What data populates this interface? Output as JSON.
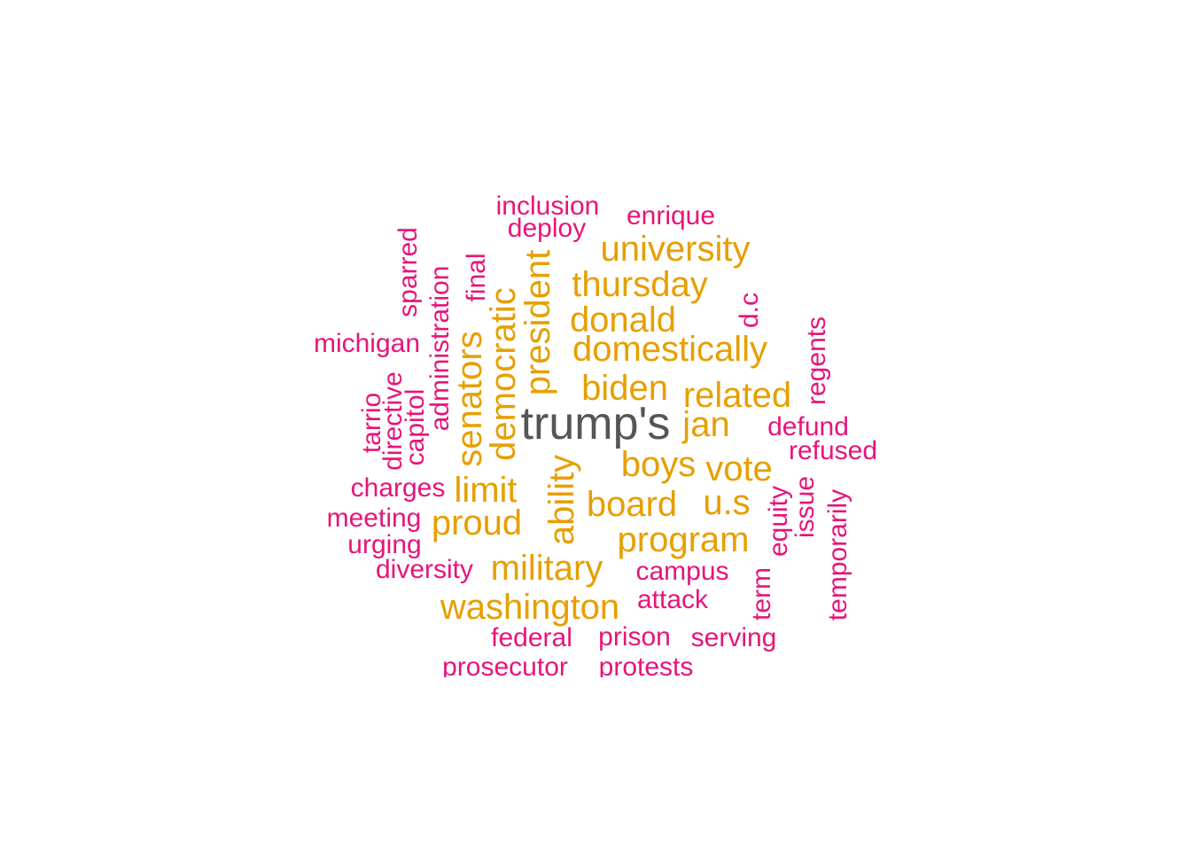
{
  "colors": {
    "top": "#555555",
    "mid": "#E69F00",
    "low": "#E7147A"
  },
  "words": [
    {
      "text": "trump's",
      "tier": "top"
    },
    {
      "text": "university",
      "tier": "mid"
    },
    {
      "text": "thursday",
      "tier": "mid"
    },
    {
      "text": "donald",
      "tier": "mid"
    },
    {
      "text": "domestically",
      "tier": "mid"
    },
    {
      "text": "biden",
      "tier": "mid"
    },
    {
      "text": "related",
      "tier": "mid"
    },
    {
      "text": "jan",
      "tier": "mid"
    },
    {
      "text": "boys",
      "tier": "mid"
    },
    {
      "text": "vote",
      "tier": "mid"
    },
    {
      "text": "board",
      "tier": "mid"
    },
    {
      "text": "u.s",
      "tier": "mid"
    },
    {
      "text": "program",
      "tier": "mid"
    },
    {
      "text": "military",
      "tier": "mid"
    },
    {
      "text": "washington",
      "tier": "mid"
    },
    {
      "text": "proud",
      "tier": "mid"
    },
    {
      "text": "limit",
      "tier": "mid"
    },
    {
      "text": "senators",
      "tier": "mid"
    },
    {
      "text": "democratic",
      "tier": "mid"
    },
    {
      "text": "president",
      "tier": "mid"
    },
    {
      "text": "ability",
      "tier": "mid"
    },
    {
      "text": "inclusion",
      "tier": "low"
    },
    {
      "text": "deploy",
      "tier": "low"
    },
    {
      "text": "enrique",
      "tier": "low"
    },
    {
      "text": "sparred",
      "tier": "low"
    },
    {
      "text": "administration",
      "tier": "low"
    },
    {
      "text": "final",
      "tier": "low"
    },
    {
      "text": "d.c",
      "tier": "low"
    },
    {
      "text": "michigan",
      "tier": "low"
    },
    {
      "text": "regents",
      "tier": "low"
    },
    {
      "text": "tarrio",
      "tier": "low"
    },
    {
      "text": "directive",
      "tier": "low"
    },
    {
      "text": "capitol",
      "tier": "low"
    },
    {
      "text": "defund",
      "tier": "low"
    },
    {
      "text": "refused",
      "tier": "low"
    },
    {
      "text": "charges",
      "tier": "low"
    },
    {
      "text": "equity",
      "tier": "low"
    },
    {
      "text": "issue",
      "tier": "low"
    },
    {
      "text": "temporarily",
      "tier": "low"
    },
    {
      "text": "meeting",
      "tier": "low"
    },
    {
      "text": "urging",
      "tier": "low"
    },
    {
      "text": "diversity",
      "tier": "low"
    },
    {
      "text": "campus",
      "tier": "low"
    },
    {
      "text": "attack",
      "tier": "low"
    },
    {
      "text": "term",
      "tier": "low"
    },
    {
      "text": "federal",
      "tier": "low"
    },
    {
      "text": "prison",
      "tier": "low"
    },
    {
      "text": "serving",
      "tier": "low"
    },
    {
      "text": "prosecutor",
      "tier": "low"
    },
    {
      "text": "protests",
      "tier": "low"
    }
  ]
}
